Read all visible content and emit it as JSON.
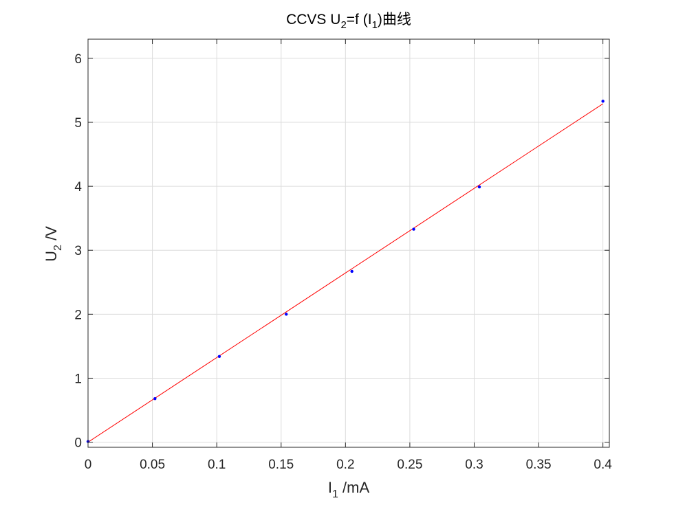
{
  "chart_data": {
    "type": "scatter",
    "title": {
      "prefix": "CCVS U",
      "sub1": "2",
      "mid": "=f (I",
      "sub2": "1",
      "suffix": ")曲线"
    },
    "xlabel": {
      "main": "I",
      "sub": "1",
      "rest": " /mA"
    },
    "ylabel": {
      "main": "U",
      "sub": "2",
      "rest": " /V"
    },
    "xlim": [
      0,
      0.405
    ],
    "ylim": [
      -0.08,
      6.3
    ],
    "xticks": [
      0,
      0.05,
      0.1,
      0.15,
      0.2,
      0.25,
      0.3,
      0.35,
      0.4
    ],
    "xtick_labels": [
      "0",
      "0.05",
      "0.1",
      "0.15",
      "0.2",
      "0.25",
      "0.3",
      "0.35",
      "0.4"
    ],
    "yticks": [
      0,
      1,
      2,
      3,
      4,
      5,
      6
    ],
    "ytick_labels": [
      "0",
      "1",
      "2",
      "3",
      "4",
      "5",
      "6"
    ],
    "grid": true,
    "series": [
      {
        "kind": "points",
        "color": "#0000ff",
        "x": [
          0.0,
          0.052,
          0.102,
          0.154,
          0.205,
          0.253,
          0.304,
          0.4
        ],
        "y": [
          0.01,
          0.68,
          1.34,
          2.0,
          2.67,
          3.33,
          3.99,
          5.33
        ]
      },
      {
        "kind": "fit-line",
        "color": "#ff0000",
        "x": [
          0.0,
          0.4
        ],
        "y": [
          0.0,
          5.29
        ]
      }
    ]
  }
}
